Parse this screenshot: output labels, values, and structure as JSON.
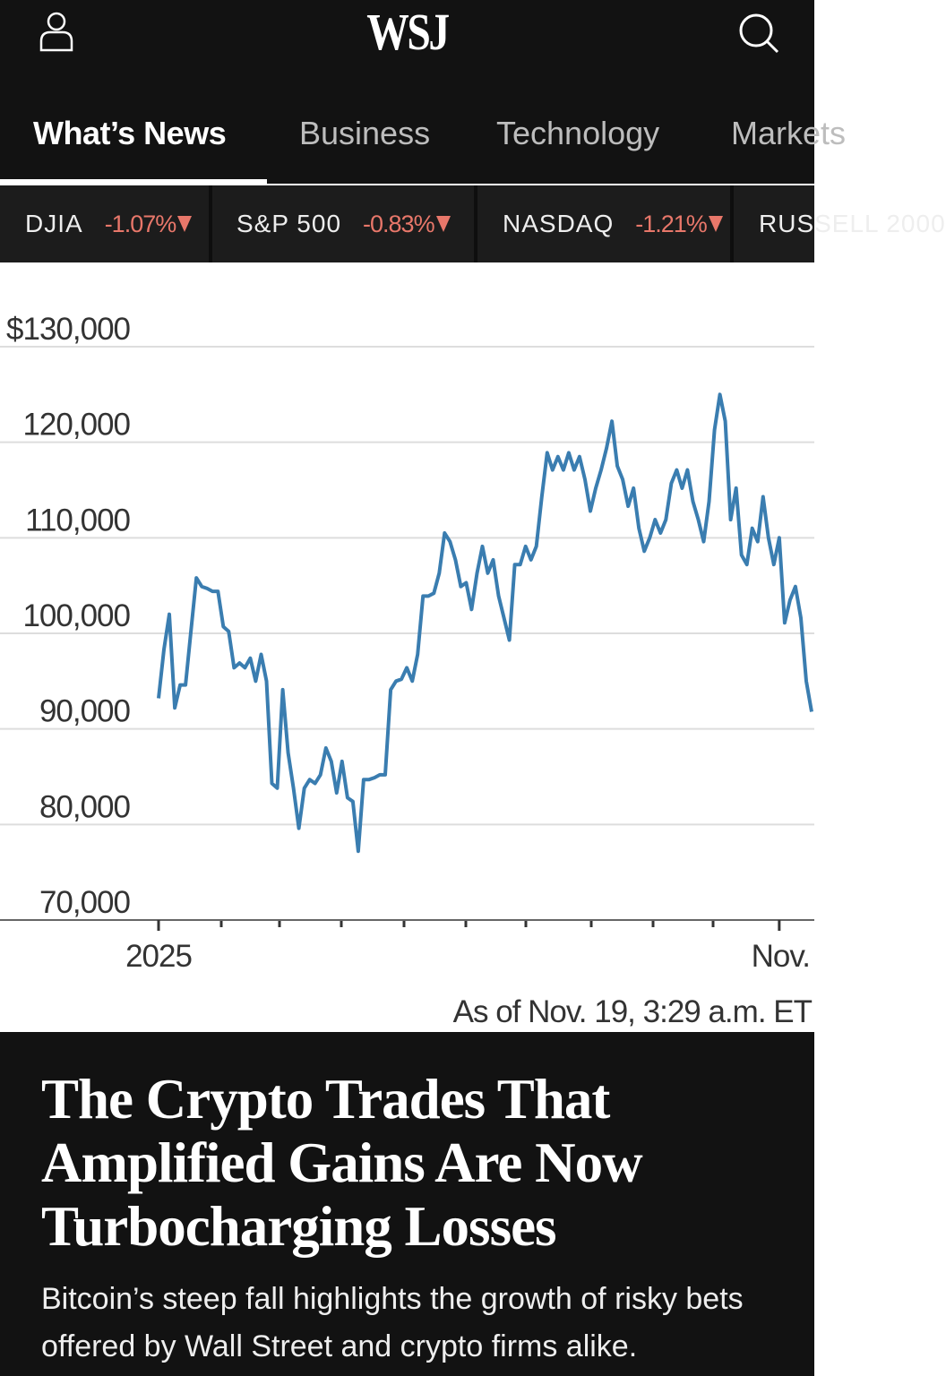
{
  "header": {
    "logo": "WSJ"
  },
  "nav": [
    "What’s News",
    "Business",
    "Technology",
    "Markets"
  ],
  "tickers": [
    {
      "name": "DJIA",
      "change": "-1.07%"
    },
    {
      "name": "S&P 500",
      "change": "-0.83%"
    },
    {
      "name": "NASDAQ",
      "change": "-1.21%"
    },
    {
      "name": "RUSSELL 2000",
      "change": ""
    }
  ],
  "chart_data": {
    "type": "line",
    "color": "#3a7db0",
    "categories": [
      "2025",
      null,
      null,
      null,
      null,
      null,
      null,
      null,
      null,
      null,
      null,
      null,
      null,
      null,
      null,
      null,
      null,
      null,
      null,
      null,
      null,
      null,
      null,
      null,
      null,
      null,
      null,
      null,
      null,
      null,
      null,
      null,
      null,
      null,
      null,
      null,
      null,
      null,
      null,
      null,
      null,
      null,
      null,
      null,
      null,
      null,
      null,
      null,
      null,
      null,
      null,
      null,
      null,
      null,
      null,
      null,
      null,
      null,
      null,
      null,
      null,
      null,
      null,
      null,
      null,
      null,
      null,
      null,
      null,
      null,
      null,
      null,
      null,
      null,
      null,
      null,
      null,
      null,
      null,
      null,
      null,
      null,
      null,
      null,
      null,
      null,
      null,
      null,
      null,
      null,
      null,
      null,
      null,
      null,
      null,
      null,
      null,
      null,
      null,
      null,
      null,
      null,
      null,
      null,
      null,
      null,
      null,
      null,
      null,
      null,
      null,
      null,
      null,
      null,
      null,
      "Nov.",
      null,
      null,
      null,
      null,
      null,
      null
    ],
    "values": [
      93200,
      98300,
      102000,
      92200,
      94600,
      94600,
      100200,
      105800,
      104900,
      104700,
      104400,
      104400,
      100700,
      100200,
      96400,
      96900,
      96400,
      97400,
      95000,
      97800,
      95000,
      84300,
      83800,
      94100,
      87500,
      83800,
      79600,
      83800,
      84700,
      84300,
      85200,
      88000,
      86600,
      83300,
      86600,
      82800,
      82400,
      77200,
      84700,
      84700,
      84900,
      85200,
      85200,
      94100,
      95000,
      95200,
      96400,
      95000,
      97800,
      103900,
      103900,
      104200,
      106300,
      110500,
      109600,
      107700,
      104900,
      105300,
      102500,
      106300,
      109100,
      106300,
      107700,
      103900,
      101600,
      99300,
      107200,
      107200,
      109100,
      107700,
      109100,
      114300,
      118900,
      117100,
      118500,
      117100,
      118900,
      117100,
      118500,
      116100,
      112800,
      115200,
      117100,
      119400,
      122200,
      117500,
      116100,
      113300,
      115200,
      111000,
      108600,
      110000,
      111900,
      110500,
      111900,
      115700,
      117100,
      115200,
      117100,
      113800,
      111900,
      109600,
      113800,
      121300,
      125000,
      122200,
      111900,
      115200,
      108200,
      107200,
      111000,
      109600,
      114300,
      110000,
      107200,
      110000,
      101100,
      103500,
      104900,
      101600,
      95000,
      91800
    ],
    "ylim": [
      70000,
      130000
    ],
    "yticks": [
      {
        "value": 70000,
        "label": "70,000"
      },
      {
        "value": 80000,
        "label": "80,000"
      },
      {
        "value": 90000,
        "label": "90,000"
      },
      {
        "value": 100000,
        "label": "100,000"
      },
      {
        "value": 110000,
        "label": "110,000"
      },
      {
        "value": 120000,
        "label": "120,000"
      },
      {
        "value": 130000,
        "label": "$130,000"
      }
    ],
    "grid": true,
    "note": "As of Nov. 19, 3:29 a.m. ET"
  },
  "article": {
    "headline": "The Crypto Trades That Amplified Gains Are Now Turbocharging Losses",
    "dek": "Bitcoin’s steep fall highlights the growth of risky bets offered by Wall Street and crypto firms alike."
  }
}
